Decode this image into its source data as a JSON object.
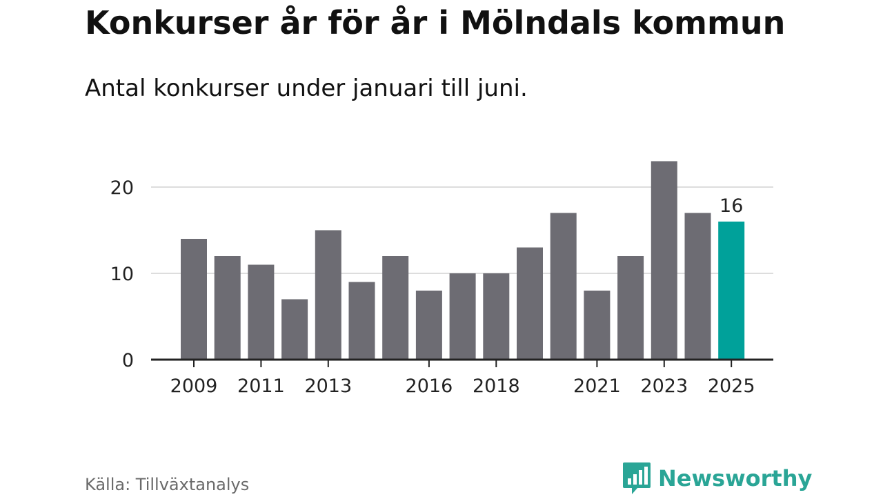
{
  "title": "Konkurser år för år i Mölndals kommun",
  "subtitle": "Antal konkurser under januari till juni.",
  "source": "Källa: Tillväxtanalys",
  "brand": {
    "name": "Newsworthy",
    "icon": "newsworthy-logo-icon",
    "color": "#2aa596"
  },
  "colors": {
    "bar": "#6d6c73",
    "highlight": "#00a19a",
    "gridline": "#dddddd",
    "axis": "#222222"
  },
  "chart_data": {
    "type": "bar",
    "title": "Konkurser år för år i Mölndals kommun",
    "subtitle": "Antal konkurser under januari till juni.",
    "xlabel": "",
    "ylabel": "",
    "categories": [
      2009,
      2010,
      2011,
      2012,
      2013,
      2014,
      2015,
      2016,
      2017,
      2018,
      2019,
      2020,
      2021,
      2022,
      2023,
      2024,
      2025
    ],
    "values": [
      14,
      12,
      11,
      7,
      15,
      9,
      12,
      8,
      10,
      10,
      13,
      17,
      8,
      12,
      23,
      17,
      16
    ],
    "highlight_category": 2025,
    "data_labels": [
      {
        "category": 2025,
        "text": "16"
      }
    ],
    "x_tick_labels": [
      "2009",
      "2011",
      "2013",
      "2016",
      "2018",
      "2021",
      "2023",
      "2025"
    ],
    "y_ticks": [
      0,
      10,
      20
    ],
    "ylim": [
      0,
      23
    ],
    "grid": true,
    "legend": "none"
  }
}
